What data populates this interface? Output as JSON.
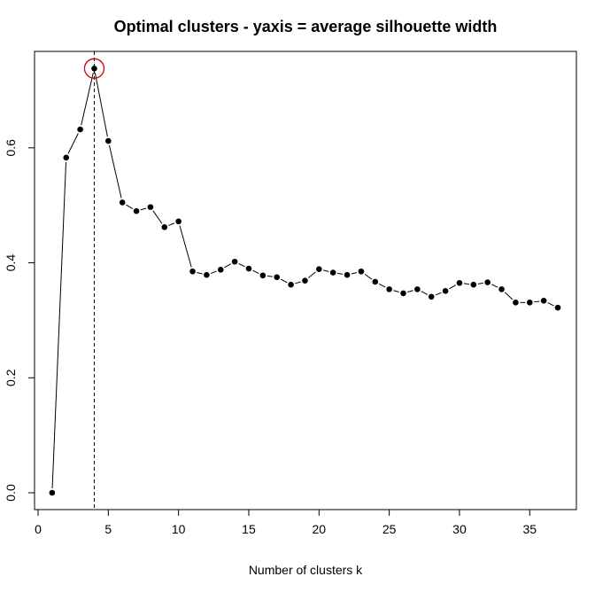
{
  "chart_data": {
    "type": "line",
    "title": "Optimal clusters - yaxis = average silhouette width",
    "xlabel": "Number of clusters k",
    "ylabel": "",
    "xlim": [
      0,
      37
    ],
    "ylim": [
      0,
      0.74
    ],
    "x_ticks": [
      0,
      5,
      10,
      15,
      20,
      25,
      30,
      35
    ],
    "y_ticks": [
      0.0,
      0.2,
      0.4,
      0.6
    ],
    "x_tick_labels": [
      "0",
      "5",
      "10",
      "15",
      "20",
      "25",
      "30",
      "35"
    ],
    "y_tick_labels": [
      "0.0",
      "0.2",
      "0.4",
      "0.6"
    ],
    "grid": false,
    "x": [
      1,
      2,
      3,
      4,
      5,
      6,
      7,
      8,
      9,
      10,
      11,
      12,
      13,
      14,
      15,
      16,
      17,
      18,
      19,
      20,
      21,
      22,
      23,
      24,
      25,
      26,
      27,
      28,
      29,
      30,
      31,
      32,
      33,
      34,
      35,
      36,
      37
    ],
    "y": [
      0.0,
      0.583,
      0.632,
      0.738,
      0.612,
      0.505,
      0.49,
      0.497,
      0.462,
      0.472,
      0.385,
      0.379,
      0.388,
      0.402,
      0.39,
      0.378,
      0.375,
      0.362,
      0.369,
      0.389,
      0.383,
      0.379,
      0.385,
      0.367,
      0.354,
      0.347,
      0.354,
      0.341,
      0.351,
      0.365,
      0.362,
      0.366,
      0.354,
      0.331,
      0.331,
      0.334,
      0.322
    ],
    "optimal_k": 4,
    "optimal_value": 0.738,
    "highlight_color": "#cc0000",
    "line_color": "#000000"
  }
}
